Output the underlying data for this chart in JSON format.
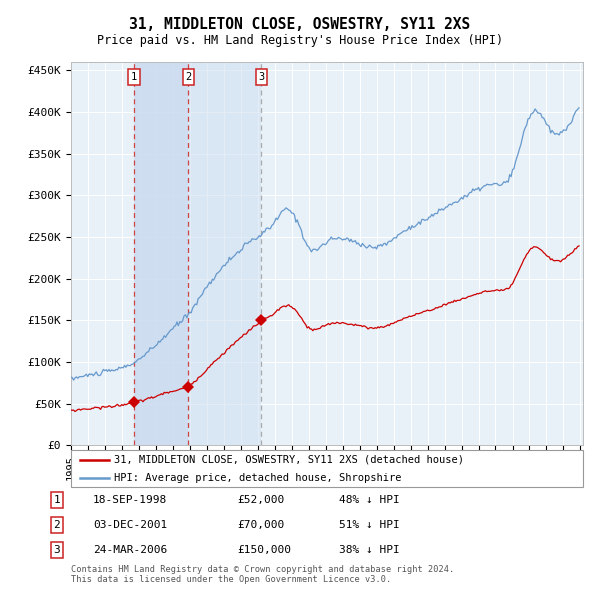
{
  "title": "31, MIDDLETON CLOSE, OSWESTRY, SY11 2XS",
  "subtitle": "Price paid vs. HM Land Registry's House Price Index (HPI)",
  "legend_line1": "31, MIDDLETON CLOSE, OSWESTRY, SY11 2XS (detached house)",
  "legend_line2": "HPI: Average price, detached house, Shropshire",
  "sale_dates": [
    "1998-09-18",
    "2001-12-03",
    "2006-03-24"
  ],
  "sale_prices": [
    52000,
    70000,
    150000
  ],
  "sale_labels": [
    "1",
    "2",
    "3"
  ],
  "table_rows": [
    [
      "1",
      "18-SEP-1998",
      "£52,000",
      "48% ↓ HPI"
    ],
    [
      "2",
      "03-DEC-2001",
      "£70,000",
      "51% ↓ HPI"
    ],
    [
      "3",
      "24-MAR-2006",
      "£150,000",
      "38% ↓ HPI"
    ]
  ],
  "footer": "Contains HM Land Registry data © Crown copyright and database right 2024.\nThis data is licensed under the Open Government Licence v3.0.",
  "red_color": "#cc0000",
  "blue_color": "#6699cc",
  "shade_color": "#ccddf0",
  "plot_bg": "#e8f0f8",
  "grid_color": "#ffffff",
  "vline_red_color": "#cc4444",
  "vline_gray_color": "#aaaaaa",
  "ylim": [
    0,
    460000
  ],
  "yticks": [
    0,
    50000,
    100000,
    150000,
    200000,
    250000,
    300000,
    350000,
    400000,
    450000
  ],
  "ytick_labels": [
    "£0",
    "£50K",
    "£100K",
    "£150K",
    "£200K",
    "£250K",
    "£300K",
    "£350K",
    "£400K",
    "£450K"
  ]
}
